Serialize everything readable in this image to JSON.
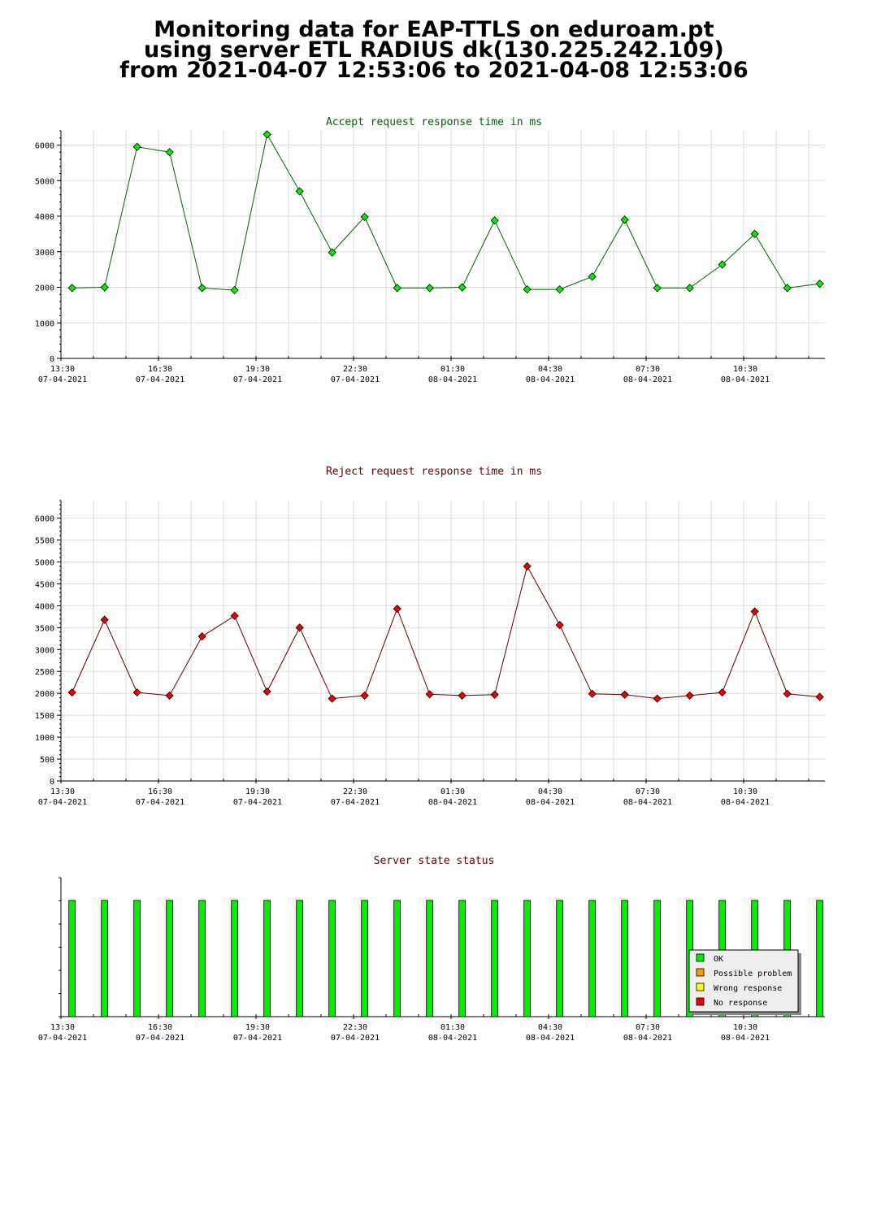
{
  "title_lines": [
    "Monitoring data for EAP-TTLS on eduroam.pt",
    "using server ETL RADIUS dk(130.225.242.109)",
    "from 2021-04-07 12:53:06 to 2021-04-08 12:53:06"
  ],
  "colors": {
    "accept_title": "#006400",
    "reject_title": "#640000",
    "status_title": "#640000",
    "accept_line": "#006400",
    "accept_marker": "#00ee00",
    "reject_line": "#640000",
    "reject_marker": "#ee0000",
    "ok": "#00ee00",
    "possible_problem": "#ff9900",
    "wrong_response": "#ffff00",
    "no_response": "#ee0000",
    "grid": "#dddddd"
  },
  "x_ticks": [
    {
      "time": "13:30",
      "date": "07-04-2021"
    },
    {
      "time": "16:30",
      "date": "07-04-2021"
    },
    {
      "time": "19:30",
      "date": "07-04-2021"
    },
    {
      "time": "22:30",
      "date": "07-04-2021"
    },
    {
      "time": "01:30",
      "date": "08-04-2021"
    },
    {
      "time": "04:30",
      "date": "08-04-2021"
    },
    {
      "time": "07:30",
      "date": "08-04-2021"
    },
    {
      "time": "10:30",
      "date": "08-04-2021"
    }
  ],
  "chart_data": [
    {
      "type": "line",
      "title": "Accept request response time in ms",
      "x": [
        "2021-04-07 13:40",
        "2021-04-07 14:40",
        "2021-04-07 15:40",
        "2021-04-07 16:40",
        "2021-04-07 17:40",
        "2021-04-07 18:40",
        "2021-04-07 19:40",
        "2021-04-07 20:40",
        "2021-04-07 21:40",
        "2021-04-07 22:40",
        "2021-04-07 23:40",
        "2021-04-08 00:40",
        "2021-04-08 01:40",
        "2021-04-08 02:40",
        "2021-04-08 03:40",
        "2021-04-08 04:40",
        "2021-04-08 05:40",
        "2021-04-08 06:40",
        "2021-04-08 07:40",
        "2021-04-08 08:40",
        "2021-04-08 09:40",
        "2021-04-08 10:40",
        "2021-04-08 11:40",
        "2021-04-08 12:40"
      ],
      "values": [
        1980,
        2000,
        5950,
        5800,
        1980,
        1920,
        6300,
        4700,
        2980,
        3980,
        1980,
        1980,
        2000,
        3880,
        1940,
        1940,
        2300,
        3900,
        1980,
        1980,
        2640,
        3500,
        1980,
        2100
      ],
      "ylim": [
        0,
        6400
      ],
      "yticks": [
        0,
        1000,
        2000,
        3000,
        4000,
        5000,
        6000
      ],
      "grid": true
    },
    {
      "type": "line",
      "title": "Reject request response time in ms",
      "x": [
        "2021-04-07 13:40",
        "2021-04-07 14:40",
        "2021-04-07 15:40",
        "2021-04-07 16:40",
        "2021-04-07 17:40",
        "2021-04-07 18:40",
        "2021-04-07 19:40",
        "2021-04-07 20:40",
        "2021-04-07 21:40",
        "2021-04-07 22:40",
        "2021-04-07 23:40",
        "2021-04-08 00:40",
        "2021-04-08 01:40",
        "2021-04-08 02:40",
        "2021-04-08 03:40",
        "2021-04-08 04:40",
        "2021-04-08 05:40",
        "2021-04-08 06:40",
        "2021-04-08 07:40",
        "2021-04-08 08:40",
        "2021-04-08 09:40",
        "2021-04-08 10:40",
        "2021-04-08 11:40",
        "2021-04-08 12:40"
      ],
      "values": [
        2020,
        3680,
        2020,
        1950,
        3300,
        3770,
        2040,
        3500,
        1880,
        1950,
        3930,
        1980,
        1950,
        1970,
        4900,
        3560,
        1990,
        1970,
        1880,
        1950,
        2020,
        3870,
        1990,
        1920
      ],
      "ylim": [
        0,
        6400
      ],
      "yticks": [
        0,
        500,
        1000,
        1500,
        2000,
        2500,
        3000,
        3500,
        4000,
        4500,
        5000,
        5500,
        6000
      ],
      "grid": true
    },
    {
      "type": "bar",
      "title": "Server state status",
      "x": [
        "2021-04-07 13:40",
        "2021-04-07 14:40",
        "2021-04-07 15:40",
        "2021-04-07 16:40",
        "2021-04-07 17:40",
        "2021-04-07 18:40",
        "2021-04-07 19:40",
        "2021-04-07 20:40",
        "2021-04-07 21:40",
        "2021-04-07 22:40",
        "2021-04-07 23:40",
        "2021-04-08 00:40",
        "2021-04-08 01:40",
        "2021-04-08 02:40",
        "2021-04-08 03:40",
        "2021-04-08 04:40",
        "2021-04-08 05:40",
        "2021-04-08 06:40",
        "2021-04-08 07:40",
        "2021-04-08 08:40",
        "2021-04-08 09:40",
        "2021-04-08 10:40",
        "2021-04-08 11:40",
        "2021-04-08 12:40"
      ],
      "status": [
        "OK",
        "OK",
        "OK",
        "OK",
        "OK",
        "OK",
        "OK",
        "OK",
        "OK",
        "OK",
        "OK",
        "OK",
        "OK",
        "OK",
        "OK",
        "OK",
        "OK",
        "OK",
        "OK",
        "OK",
        "OK",
        "OK",
        "OK",
        "OK"
      ],
      "legend": [
        {
          "label": "OK",
          "color": "#00ee00"
        },
        {
          "label": "Possible problem",
          "color": "#ff9900"
        },
        {
          "label": "Wrong response",
          "color": "#ffff00"
        },
        {
          "label": "No response",
          "color": "#ee0000"
        }
      ],
      "legend_position": "bottom-right",
      "grid": false
    }
  ]
}
